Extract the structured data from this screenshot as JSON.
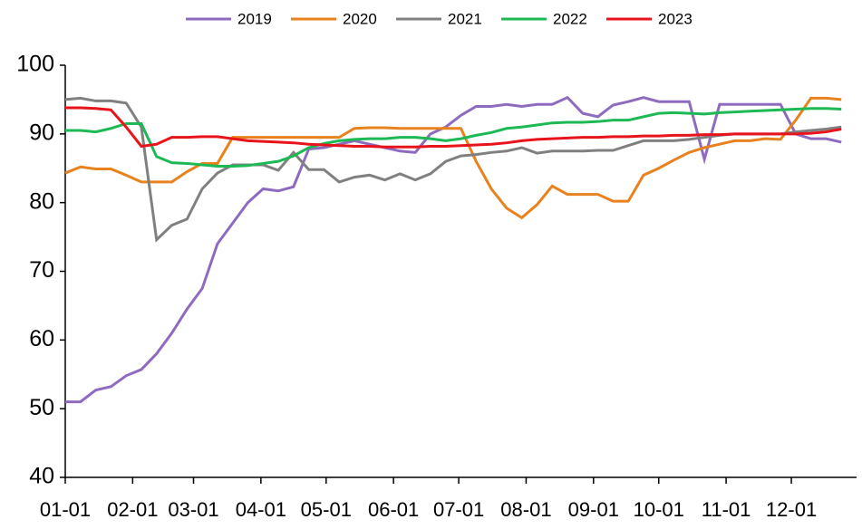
{
  "chart_data": {
    "type": "line",
    "xlim": [
      0,
      364
    ],
    "xticks": [
      {
        "value": 0,
        "label": "01-01"
      },
      {
        "value": 31,
        "label": "02-01"
      },
      {
        "value": 59,
        "label": "03-01"
      },
      {
        "value": 90,
        "label": "04-01"
      },
      {
        "value": 120,
        "label": "05-01"
      },
      {
        "value": 151,
        "label": "06-01"
      },
      {
        "value": 181,
        "label": "07-01"
      },
      {
        "value": 212,
        "label": "08-01"
      },
      {
        "value": 243,
        "label": "09-01"
      },
      {
        "value": 273,
        "label": "10-01"
      },
      {
        "value": 304,
        "label": "11-01"
      },
      {
        "value": 334,
        "label": "12-01"
      }
    ],
    "ylim": [
      40,
      100
    ],
    "yticks": [
      40,
      50,
      60,
      70,
      80,
      90,
      100
    ],
    "x": [
      0,
      7,
      14,
      21,
      28,
      35,
      42,
      49,
      56,
      63,
      70,
      77,
      84,
      91,
      98,
      105,
      112,
      119,
      126,
      133,
      140,
      147,
      154,
      161,
      168,
      175,
      182,
      189,
      196,
      203,
      210,
      217,
      224,
      231,
      238,
      245,
      252,
      259,
      266,
      273,
      280,
      287,
      294,
      301,
      308,
      315,
      322,
      329,
      336,
      343,
      350,
      357
    ],
    "series": [
      {
        "name": "2019",
        "color": "#8e6bbf",
        "values": [
          51,
          51,
          52.7,
          53.2,
          54.8,
          55.7,
          58,
          61,
          64.5,
          67.5,
          74,
          77,
          80,
          82,
          81.7,
          82.3,
          87.8,
          88,
          88.5,
          89,
          88.5,
          88,
          87.5,
          87.3,
          90,
          91,
          92.7,
          94,
          94,
          94.3,
          94,
          94.3,
          94.3,
          95.3,
          93,
          92.5,
          94.2,
          94.7,
          95.3,
          94.7,
          94.7,
          94.7,
          86.3,
          94.3,
          94.3,
          94.3,
          94.3,
          94.3,
          90,
          89.3,
          89.3,
          88.8
        ]
      },
      {
        "name": "2020",
        "color": "#e8821e",
        "values": [
          84.3,
          85.2,
          84.9,
          84.9,
          84,
          83,
          83,
          83,
          84.5,
          85.7,
          85.7,
          89.5,
          89.5,
          89.5,
          89.5,
          89.5,
          89.5,
          89.5,
          89.5,
          90.8,
          90.9,
          90.9,
          90.8,
          90.8,
          90.8,
          90.8,
          90.8,
          86,
          82,
          79.2,
          77.8,
          79.7,
          82.4,
          81.2,
          81.2,
          81.2,
          80.2,
          80.2,
          84,
          85,
          86.2,
          87.3,
          88,
          88.5,
          89,
          89,
          89.3,
          89.2,
          92,
          95.2,
          95.2,
          95
        ]
      },
      {
        "name": "2021",
        "color": "#808080",
        "values": [
          95,
          95.2,
          94.8,
          94.8,
          94.5,
          91,
          74.6,
          76.7,
          77.6,
          82,
          84.3,
          85.5,
          85.5,
          85.5,
          84.7,
          87.3,
          84.8,
          84.8,
          83,
          83.7,
          84,
          83.3,
          84.2,
          83.3,
          84.2,
          86,
          86.8,
          87,
          87.3,
          87.5,
          88,
          87.2,
          87.5,
          87.5,
          87.5,
          87.6,
          87.6,
          88.3,
          89,
          89,
          89,
          89.2,
          89.5,
          89.8,
          90,
          90,
          90,
          90,
          90.3,
          90.5,
          90.7,
          91
        ]
      },
      {
        "name": "2022",
        "color": "#1db954",
        "values": [
          90.5,
          90.5,
          90.3,
          90.8,
          91.5,
          91.5,
          86.7,
          85.8,
          85.7,
          85.5,
          85.3,
          85.3,
          85.4,
          85.7,
          86,
          86.8,
          88,
          88.6,
          89,
          89.2,
          89.3,
          89.3,
          89.5,
          89.5,
          89.3,
          89,
          89.3,
          89.8,
          90.2,
          90.8,
          91,
          91.3,
          91.6,
          91.7,
          91.7,
          91.8,
          92,
          92,
          92.5,
          93,
          93.1,
          93,
          92.9,
          93.1,
          93.2,
          93.3,
          93.4,
          93.5,
          93.6,
          93.7,
          93.7,
          93.6
        ]
      },
      {
        "name": "2023",
        "color": "#e8141c",
        "values": [
          93.8,
          93.8,
          93.7,
          93.5,
          91,
          88.2,
          88.5,
          89.5,
          89.5,
          89.6,
          89.6,
          89.3,
          89,
          88.9,
          88.8,
          88.7,
          88.5,
          88.4,
          88.3,
          88.2,
          88.2,
          88.1,
          88.1,
          88.1,
          88.2,
          88.2,
          88.3,
          88.4,
          88.5,
          88.7,
          89,
          89.2,
          89.3,
          89.4,
          89.5,
          89.5,
          89.6,
          89.6,
          89.7,
          89.7,
          89.8,
          89.8,
          89.9,
          89.9,
          90,
          90,
          90,
          90,
          90,
          90.1,
          90.3,
          90.7
        ]
      }
    ]
  }
}
